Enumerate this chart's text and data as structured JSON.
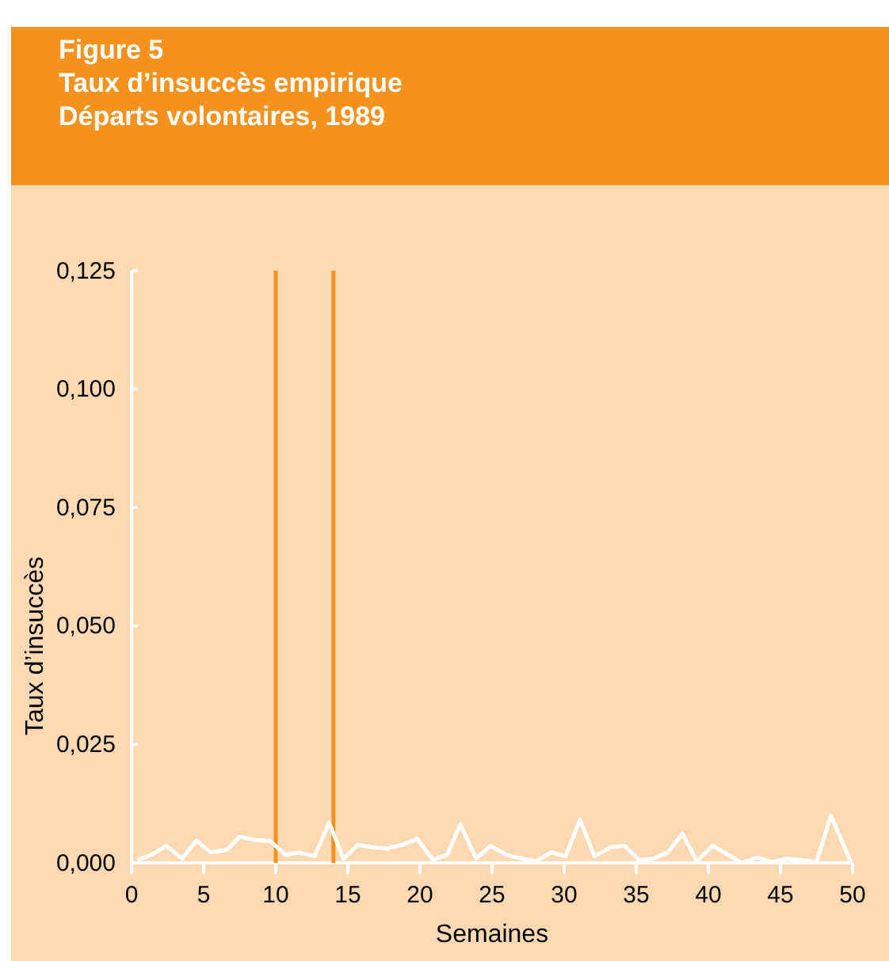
{
  "chart_data": {
    "type": "line",
    "title": "Figure 5",
    "subtitle": "Taux d’insuccès empirique\nDéparts volontaires, 1989",
    "xlabel": "Semaines",
    "ylabel": "Taux d’insuccès",
    "x": [
      0.4,
      1.4,
      2.4,
      3.5,
      4.5,
      5.5,
      6.6,
      7.5,
      8.6,
      9.6,
      10.7,
      11.6,
      12.7,
      13.7,
      14.7,
      15.7,
      16.7,
      17.7,
      18.8,
      19.8,
      20.9,
      21.9,
      22.8,
      23.9,
      24.9,
      26.0,
      27.1,
      28.1,
      29.1,
      30.1,
      31.1,
      32.1,
      33.2,
      34.2,
      35.2,
      36.2,
      37.2,
      38.2,
      39.2,
      40.3,
      41.2,
      42.3,
      43.4,
      44.4,
      45.5,
      46.4,
      47.5,
      48.5,
      49.9
    ],
    "series": [
      {
        "color": "#ffffff",
        "values": [
          0.0006,
          0.0017,
          0.0036,
          0.0009,
          0.0047,
          0.0022,
          0.0027,
          0.0055,
          0.0048,
          0.0046,
          0.0017,
          0.0022,
          0.0014,
          0.0085,
          0.0009,
          0.0038,
          0.0033,
          0.003,
          0.0038,
          0.0051,
          0.0006,
          0.0017,
          0.0082,
          0.0009,
          0.0036,
          0.0017,
          0.0009,
          0.0004,
          0.0022,
          0.0014,
          0.0091,
          0.0014,
          0.0033,
          0.0036,
          0.0006,
          0.0009,
          0.0022,
          0.0062,
          0.0003,
          0.0036,
          0.002,
          0.0,
          0.0011,
          0.0002,
          0.0009,
          0.0006,
          0.0002,
          0.01,
          0.0
        ]
      }
    ],
    "xlim": [
      0,
      50
    ],
    "xticks": [
      0,
      5,
      10,
      15,
      20,
      25,
      30,
      35,
      40,
      45,
      50
    ],
    "ylim": [
      0,
      0.125
    ],
    "yticks": [
      {
        "value": 0,
        "label": "0,000"
      },
      {
        "value": 0.025,
        "label": "0,025"
      },
      {
        "value": 0.05,
        "label": "0,050"
      },
      {
        "value": 0.075,
        "label": "0,075"
      },
      {
        "value": 0.1,
        "label": "0,100"
      },
      {
        "value": 0.125,
        "label": "0,125"
      }
    ],
    "ref_lines": [
      {
        "axis": "x",
        "value": 10,
        "color": "#f5921e"
      },
      {
        "axis": "x",
        "value": 14,
        "color": "#f5921e"
      }
    ],
    "grid": false,
    "marker": "none",
    "line_style": "solid"
  }
}
